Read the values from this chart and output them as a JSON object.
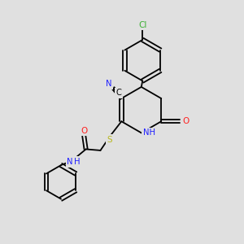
{
  "bg": "#e0e0e0",
  "bond_color": "#000000",
  "colors": {
    "Cl": "#3cb034",
    "N": "#2020ff",
    "O": "#ff2020",
    "S": "#b8b820",
    "C": "#000000",
    "H": "#2020ff"
  },
  "figsize": [
    3.0,
    3.0
  ],
  "dpi": 100
}
